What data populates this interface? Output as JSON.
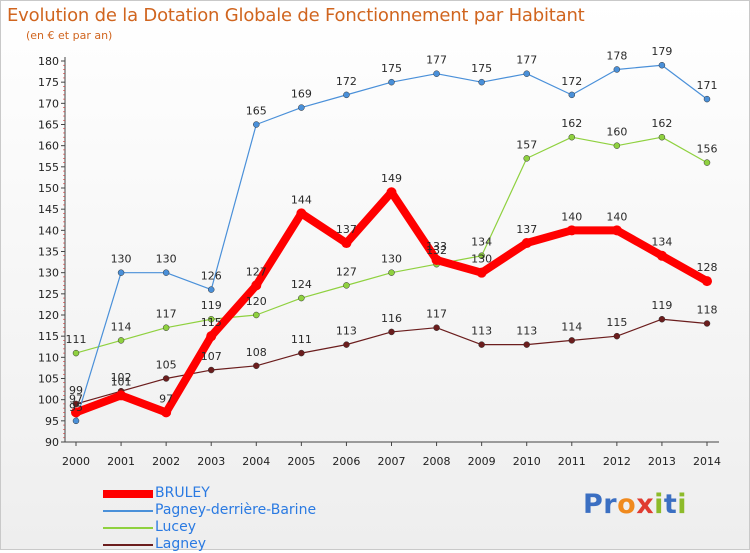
{
  "header": {
    "title": "Evolution de la Dotation Globale de Fonctionnement par Habitant",
    "subtitle": "(en € et par an)"
  },
  "logo": {
    "text": "Proxiti",
    "letters": [
      {
        "ch": "P",
        "color": "#3b6fc2"
      },
      {
        "ch": "r",
        "color": "#3b6fc2"
      },
      {
        "ch": "o",
        "color": "#f08a1e"
      },
      {
        "ch": "x",
        "color": "#e03c31"
      },
      {
        "ch": "i",
        "color": "#8dbb2a"
      },
      {
        "ch": "t",
        "color": "#3b6fc2"
      },
      {
        "ch": "i",
        "color": "#8dbb2a"
      }
    ]
  },
  "chart_data": {
    "type": "line",
    "title": "Evolution de la Dotation Globale de Fonctionnement par Habitant",
    "subtitle": "(en € et par an)",
    "xlabel": "",
    "ylabel": "",
    "x": [
      "2000",
      "2001",
      "2002",
      "2003",
      "2004",
      "2005",
      "2006",
      "2007",
      "2008",
      "2009",
      "2010",
      "2011",
      "2012",
      "2013",
      "2014"
    ],
    "ylim": [
      90,
      180
    ],
    "yticks": [
      90,
      95,
      100,
      105,
      110,
      115,
      120,
      125,
      130,
      135,
      140,
      145,
      150,
      155,
      160,
      165,
      170,
      175,
      180
    ],
    "grid": false,
    "legend_position": "bottom-left",
    "series": [
      {
        "name": "BRULEY",
        "color": "#ff0000",
        "values": [
          97,
          101,
          97,
          115,
          127,
          144,
          137,
          149,
          133,
          130,
          137,
          140,
          140,
          134,
          128
        ]
      },
      {
        "name": "Pagney-derrière-Barine",
        "color": "#4a90d9",
        "values": [
          95,
          130,
          130,
          126,
          165,
          169,
          172,
          175,
          177,
          175,
          177,
          172,
          178,
          179,
          171
        ]
      },
      {
        "name": "Lucey",
        "color": "#8fd13f",
        "values": [
          111,
          114,
          117,
          119,
          120,
          124,
          127,
          130,
          132,
          134,
          157,
          162,
          160,
          162,
          156
        ]
      },
      {
        "name": "Lagney",
        "color": "#6b1d1d",
        "values": [
          99,
          102,
          105,
          107,
          108,
          111,
          113,
          116,
          117,
          113,
          113,
          114,
          115,
          119,
          118
        ]
      }
    ]
  }
}
